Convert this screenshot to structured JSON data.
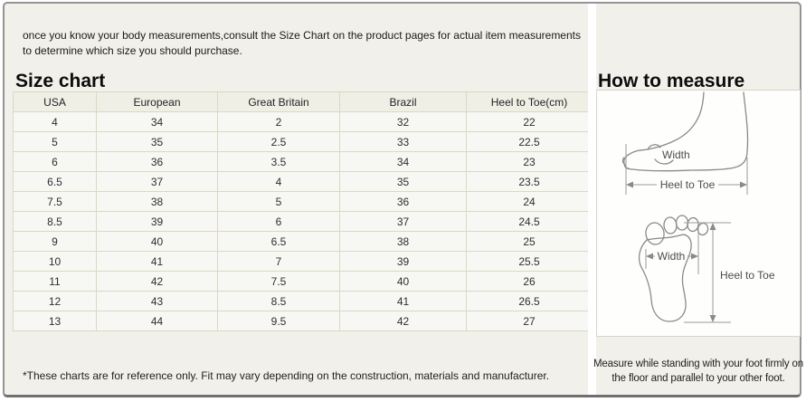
{
  "intro": "once you know your body measurements,consult the Size Chart on the product pages for actual item measurements to determine which size you should purchase.",
  "left": {
    "heading": "Size chart",
    "table": {
      "columns": [
        "USA",
        "European",
        "Great Britain",
        "Brazil",
        "Heel to Toe(cm)"
      ],
      "rows": [
        [
          "4",
          "34",
          "2",
          "32",
          "22"
        ],
        [
          "5",
          "35",
          "2.5",
          "33",
          "22.5"
        ],
        [
          "6",
          "36",
          "3.5",
          "34",
          "23"
        ],
        [
          "6.5",
          "37",
          "4",
          "35",
          "23.5"
        ],
        [
          "7.5",
          "38",
          "5",
          "36",
          "24"
        ],
        [
          "8.5",
          "39",
          "6",
          "37",
          "24.5"
        ],
        [
          "9",
          "40",
          "6.5",
          "38",
          "25"
        ],
        [
          "10",
          "41",
          "7",
          "39",
          "25.5"
        ],
        [
          "11",
          "42",
          "7.5",
          "40",
          "26"
        ],
        [
          "12",
          "43",
          "8.5",
          "41",
          "26.5"
        ],
        [
          "13",
          "44",
          "9.5",
          "42",
          "27"
        ]
      ]
    },
    "footnote": "*These charts are for reference only. Fit may vary depending on the construction, materials and manufacturer."
  },
  "right": {
    "heading": "How to measure",
    "diagram": {
      "side_view": {
        "width_label": "Width",
        "length_label": "Heel to Toe"
      },
      "top_view": {
        "width_label": "Width",
        "length_label": "Heel to Toe"
      }
    },
    "footnote": "Measure while standing with your foot firmly on the floor and parallel to your other foot."
  },
  "colors": {
    "panel_bg": "#f1f0ea",
    "table_cell_bg": "#f7f7f4",
    "table_header_bg": "#f0efe5",
    "table_border": "#dbd8c3",
    "frame_border": "#949494",
    "diagram_box_bg": "#fefefd"
  }
}
